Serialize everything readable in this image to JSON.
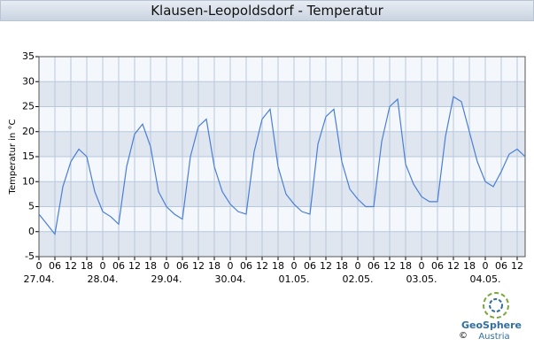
{
  "chart_data": {
    "type": "line",
    "title": "Klausen-Leopoldsdorf - Temperatur",
    "y_label": "Temperatur in °C",
    "x": [
      0,
      3,
      6,
      9,
      12,
      15,
      18,
      21,
      24,
      27,
      30,
      33,
      36,
      39,
      42,
      45,
      48,
      51,
      54,
      57,
      60,
      63,
      66,
      69,
      72,
      75,
      78,
      81,
      84,
      87,
      90,
      93,
      96,
      99,
      102,
      105,
      108,
      111,
      114,
      117,
      120,
      123,
      126,
      129,
      132,
      135,
      138,
      141,
      144,
      147,
      150,
      153,
      156,
      159,
      162,
      165,
      168,
      171,
      174,
      177,
      180,
      183
    ],
    "series": [
      {
        "name": "Temperatur",
        "color": "#4a7fd6",
        "values": [
          3.5,
          1.5,
          -0.5,
          9,
          14,
          16.5,
          15,
          8,
          4,
          3,
          1.5,
          13,
          19.5,
          21.5,
          17,
          8,
          5,
          3.5,
          2.5,
          15,
          21,
          22.5,
          13,
          8,
          5.5,
          4,
          3.5,
          16,
          22.5,
          24.5,
          13,
          7.5,
          5.5,
          4,
          3.5,
          17.5,
          23,
          24.5,
          14,
          8.5,
          6.5,
          5,
          5,
          18,
          25,
          26.5,
          13.5,
          9.5,
          7,
          6,
          6,
          19,
          27,
          26,
          20,
          14,
          10,
          9,
          12,
          15.5,
          16.5,
          15
        ]
      }
    ],
    "xlim": [
      0,
      183
    ],
    "xticks": [
      0,
      {
        "value": 6,
        "label": "06"
      },
      12,
      18,
      {
        "value": 24,
        "label": "0"
      },
      {
        "value": 30,
        "label": "06"
      },
      {
        "value": 36,
        "label": "12"
      },
      {
        "value": 42,
        "label": "18"
      },
      {
        "value": 48,
        "label": "0"
      },
      {
        "value": 54,
        "label": "06"
      },
      {
        "value": 60,
        "label": "12"
      },
      {
        "value": 66,
        "label": "18"
      },
      {
        "value": 72,
        "label": "0"
      },
      {
        "value": 78,
        "label": "06"
      },
      {
        "value": 84,
        "label": "12"
      },
      {
        "value": 90,
        "label": "18"
      },
      {
        "value": 96,
        "label": "0"
      },
      {
        "value": 102,
        "label": "06"
      },
      {
        "value": 108,
        "label": "12"
      },
      {
        "value": 114,
        "label": "18"
      },
      {
        "value": 120,
        "label": "0"
      },
      {
        "value": 126,
        "label": "06"
      },
      {
        "value": 132,
        "label": "12"
      },
      {
        "value": 138,
        "label": "18"
      },
      {
        "value": 144,
        "label": "0"
      },
      {
        "value": 150,
        "label": "06"
      },
      {
        "value": 156,
        "label": "12"
      },
      {
        "value": 162,
        "label": "18"
      },
      {
        "value": 168,
        "label": "0"
      },
      {
        "value": 174,
        "label": "06"
      },
      {
        "value": 180,
        "label": "12"
      }
    ],
    "x_date_labels": [
      {
        "value": 0,
        "label": "27.04."
      },
      {
        "value": 24,
        "label": "28.04."
      },
      {
        "value": 48,
        "label": "29.04."
      },
      {
        "value": 72,
        "label": "30.04."
      },
      {
        "value": 96,
        "label": "01.05."
      },
      {
        "value": 120,
        "label": "02.05."
      },
      {
        "value": 144,
        "label": "03.05."
      },
      {
        "value": 168,
        "label": "04.05."
      }
    ],
    "ylim": [
      -5,
      35
    ],
    "yticks": [
      -5,
      0,
      5,
      10,
      15,
      20,
      25,
      30,
      35
    ],
    "grid": true
  },
  "footer": {
    "brand": "GeoSphere",
    "sub": "Austria",
    "copyright": "©"
  }
}
